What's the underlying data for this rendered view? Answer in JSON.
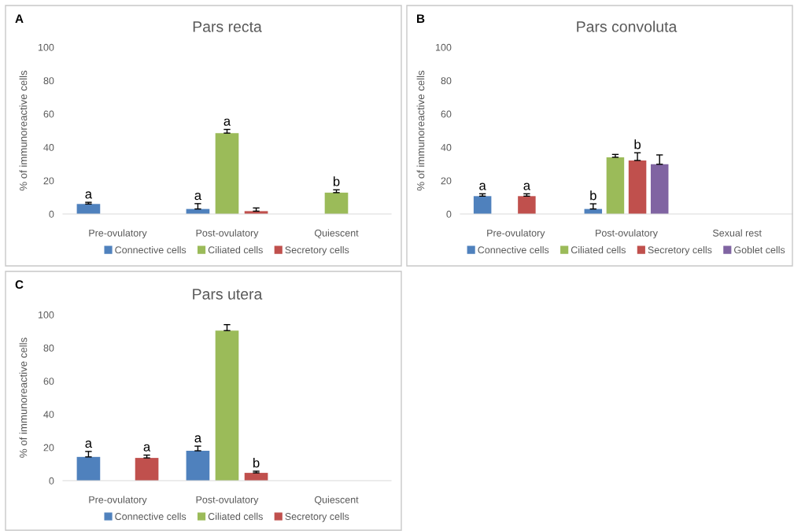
{
  "chart_data": [
    {
      "type": "bar",
      "title": "Pars recta",
      "ylabel": "% of immunoreactive cells",
      "annotations": [
        "A"
      ],
      "categories": [
        "Pre-ovulatory",
        "Post-ovulatory",
        "Quiescent"
      ],
      "ylim": [
        0,
        100
      ],
      "yticks": [
        0,
        20,
        40,
        60,
        80,
        100
      ],
      "grid": false,
      "legend": "bottom",
      "series": [
        {
          "name": "Connective cells",
          "color": "#4f81bd",
          "values": [
            6.0,
            3.0,
            null
          ],
          "errors": [
            1.0,
            3.2,
            null
          ],
          "value_labels": [
            "a",
            "a",
            null
          ]
        },
        {
          "name": "Ciliated cells",
          "color": "#9bbb59",
          "values": [
            null,
            48.5,
            12.8
          ],
          "errors": [
            null,
            2.2,
            1.7
          ],
          "value_labels": [
            null,
            "a",
            "b"
          ]
        },
        {
          "name": "Secretory cells",
          "color": "#c0504d",
          "values": [
            null,
            1.7,
            null
          ],
          "errors": [
            null,
            1.9,
            null
          ]
        }
      ]
    },
    {
      "type": "bar",
      "title": "Pars convoluta",
      "ylabel": "% of immunoreactive cells",
      "annotations": [
        "B"
      ],
      "categories": [
        "Pre-ovulatory",
        "Post-ovulatory",
        "Sexual rest"
      ],
      "ylim": [
        0,
        100
      ],
      "yticks": [
        0,
        20,
        40,
        60,
        80,
        100
      ],
      "grid": false,
      "legend": "bottom",
      "series": [
        {
          "name": "Connective cells",
          "color": "#4f81bd",
          "values": [
            10.7,
            3.0,
            null
          ],
          "errors": [
            1.4,
            3.1,
            null
          ],
          "value_labels": [
            "a",
            "b",
            null
          ]
        },
        {
          "name": "Ciliated cells",
          "color": "#9bbb59",
          "values": [
            null,
            34.0,
            null
          ],
          "errors": [
            null,
            1.7,
            null
          ]
        },
        {
          "name": "Secretory cells",
          "color": "#c0504d",
          "values": [
            10.7,
            32.1,
            null
          ],
          "errors": [
            1.4,
            4.6,
            null
          ],
          "value_labels": [
            "a",
            "b",
            null
          ]
        },
        {
          "name": "Goblet cells",
          "color": "#8064a2",
          "values": [
            null,
            29.8,
            null
          ],
          "errors": [
            null,
            5.6,
            null
          ]
        }
      ]
    },
    {
      "type": "bar",
      "title": "Pars utera",
      "ylabel": "% of immunoreactive cells",
      "annotations": [
        "C"
      ],
      "categories": [
        "Pre-ovulatory",
        "Post-ovulatory",
        "Quiescent"
      ],
      "ylim": [
        0,
        100
      ],
      "yticks": [
        0,
        20,
        40,
        60,
        80,
        100
      ],
      "grid": false,
      "legend": "bottom",
      "series": [
        {
          "name": "Connective cells",
          "color": "#4f81bd",
          "values": [
            14.3,
            18.0,
            null
          ],
          "errors": [
            3.3,
            2.8,
            null
          ],
          "value_labels": [
            "a",
            "a",
            null
          ]
        },
        {
          "name": "Ciliated cells",
          "color": "#9bbb59",
          "values": [
            null,
            90.4,
            null
          ],
          "errors": [
            null,
            3.6,
            null
          ]
        },
        {
          "name": "Secretory cells",
          "color": "#c0504d",
          "values": [
            13.7,
            4.7,
            null
          ],
          "errors": [
            1.7,
            1.0,
            null
          ],
          "value_labels": [
            "a",
            "b",
            null
          ]
        }
      ]
    }
  ]
}
